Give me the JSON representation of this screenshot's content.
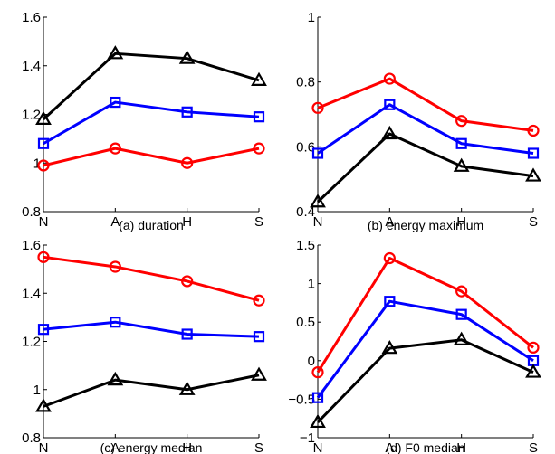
{
  "chart_data": [
    {
      "type": "line",
      "caption": "(a) duration",
      "categories": [
        "N",
        "A",
        "H",
        "S"
      ],
      "ylim": [
        0.8,
        1.6
      ],
      "yticks": [
        0.8,
        1,
        1.2,
        1.4,
        1.6
      ],
      "ytick_labels": [
        "0.8",
        "1",
        "1.2",
        "1.4",
        "1.6"
      ],
      "series": [
        {
          "marker": "triangle",
          "color": "#000000",
          "values": [
            1.18,
            1.45,
            1.43,
            1.34
          ]
        },
        {
          "marker": "square",
          "color": "#0000ff",
          "values": [
            1.08,
            1.25,
            1.21,
            1.19
          ]
        },
        {
          "marker": "circle",
          "color": "#ff0000",
          "values": [
            0.99,
            1.06,
            1.0,
            1.06
          ]
        }
      ]
    },
    {
      "type": "line",
      "caption": "(b) energy maximum",
      "categories": [
        "N",
        "A",
        "H",
        "S"
      ],
      "ylim": [
        0.4,
        1.0
      ],
      "yticks": [
        0.4,
        0.6,
        0.8,
        1.0
      ],
      "ytick_labels": [
        "0.4",
        "0.6",
        "0.8",
        "1"
      ],
      "series": [
        {
          "marker": "circle",
          "color": "#ff0000",
          "values": [
            0.72,
            0.81,
            0.68,
            0.65
          ]
        },
        {
          "marker": "square",
          "color": "#0000ff",
          "values": [
            0.58,
            0.73,
            0.61,
            0.58
          ]
        },
        {
          "marker": "triangle",
          "color": "#000000",
          "values": [
            0.43,
            0.64,
            0.54,
            0.51
          ]
        }
      ]
    },
    {
      "type": "line",
      "caption": "(c) energy median",
      "categories": [
        "N",
        "A",
        "H",
        "S"
      ],
      "ylim": [
        0.8,
        1.6
      ],
      "yticks": [
        0.8,
        1,
        1.2,
        1.4,
        1.6
      ],
      "ytick_labels": [
        "0.8",
        "1",
        "1.2",
        "1.4",
        "1.6"
      ],
      "series": [
        {
          "marker": "circle",
          "color": "#ff0000",
          "values": [
            1.55,
            1.51,
            1.45,
            1.37
          ]
        },
        {
          "marker": "square",
          "color": "#0000ff",
          "values": [
            1.25,
            1.28,
            1.23,
            1.22
          ]
        },
        {
          "marker": "triangle",
          "color": "#000000",
          "values": [
            0.93,
            1.04,
            1.0,
            1.06
          ]
        }
      ]
    },
    {
      "type": "line",
      "caption": "(d) F0 median",
      "categories": [
        "N",
        "A",
        "H",
        "S"
      ],
      "ylim": [
        -1,
        1.5
      ],
      "yticks": [
        -1,
        -0.5,
        0,
        0.5,
        1,
        1.5
      ],
      "ytick_labels": [
        "−1",
        "−0.5",
        "0",
        "0.5",
        "1",
        "1.5"
      ],
      "series": [
        {
          "marker": "circle",
          "color": "#ff0000",
          "values": [
            -0.15,
            1.33,
            0.9,
            0.17
          ]
        },
        {
          "marker": "square",
          "color": "#0000ff",
          "values": [
            -0.48,
            0.77,
            0.6,
            0.0
          ]
        },
        {
          "marker": "triangle",
          "color": "#000000",
          "values": [
            -0.8,
            0.16,
            0.27,
            -0.15
          ]
        }
      ]
    }
  ]
}
